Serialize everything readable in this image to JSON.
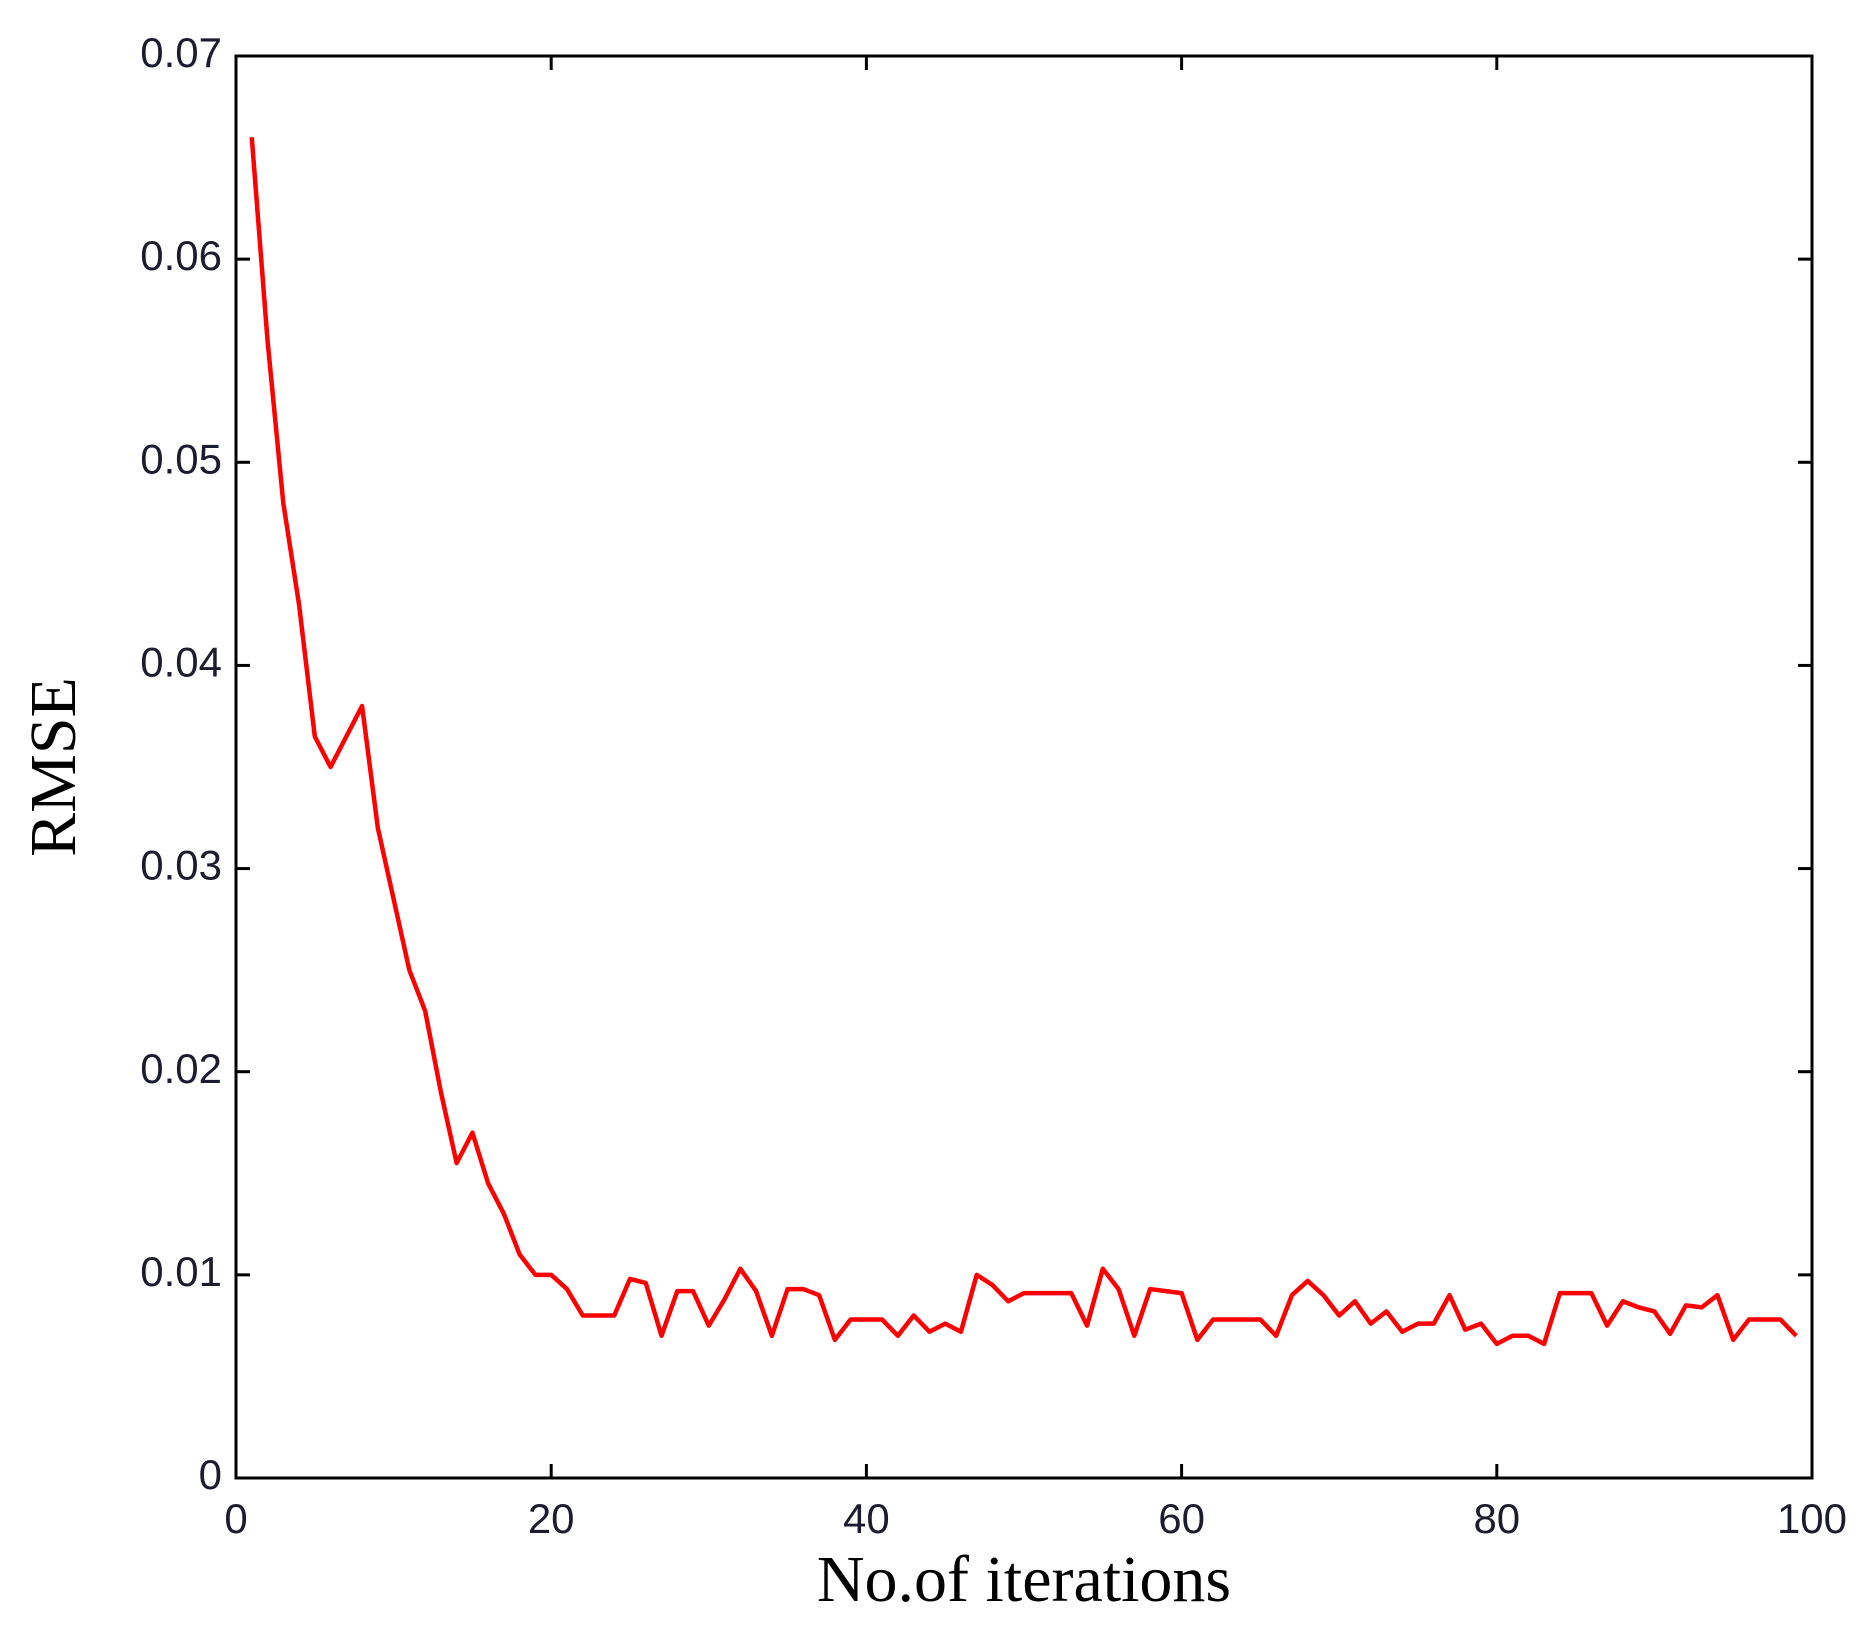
{
  "chart_data": {
    "type": "line",
    "xlabel": "No.of iterations",
    "ylabel": "RMSE",
    "x": [
      1,
      2,
      3,
      4,
      5,
      6,
      7,
      8,
      9,
      10,
      11,
      12,
      13,
      14,
      15,
      16,
      17,
      18,
      19,
      20,
      21,
      22,
      23,
      24,
      25,
      26,
      27,
      28,
      29,
      30,
      31,
      32,
      33,
      34,
      35,
      36,
      37,
      38,
      39,
      40,
      41,
      42,
      43,
      44,
      45,
      46,
      47,
      48,
      49,
      50,
      51,
      52,
      53,
      54,
      55,
      56,
      57,
      58,
      59,
      60,
      61,
      62,
      63,
      64,
      65,
      66,
      67,
      68,
      69,
      70,
      71,
      72,
      73,
      74,
      75,
      76,
      77,
      78,
      79,
      80,
      81,
      82,
      83,
      84,
      85,
      86,
      87,
      88,
      89,
      90,
      91,
      92,
      93,
      94,
      95,
      96,
      97,
      98,
      99
    ],
    "values": [
      0.066,
      0.056,
      0.048,
      0.043,
      0.0365,
      0.035,
      0.0365,
      0.038,
      0.032,
      0.0285,
      0.025,
      0.023,
      0.019,
      0.0155,
      0.017,
      0.0145,
      0.013,
      0.011,
      0.01,
      0.01,
      0.0093,
      0.008,
      0.008,
      0.008,
      0.0098,
      0.0096,
      0.007,
      0.0092,
      0.0092,
      0.0075,
      0.0088,
      0.0103,
      0.0092,
      0.007,
      0.0093,
      0.0093,
      0.009,
      0.0068,
      0.0078,
      0.0078,
      0.0078,
      0.007,
      0.008,
      0.0072,
      0.0076,
      0.0072,
      0.01,
      0.0095,
      0.0087,
      0.0091,
      0.0091,
      0.0091,
      0.0091,
      0.0075,
      0.0103,
      0.0093,
      0.007,
      0.0093,
      0.0092,
      0.0091,
      0.0068,
      0.0078,
      0.0078,
      0.0078,
      0.0078,
      0.007,
      0.009,
      0.0097,
      0.009,
      0.008,
      0.0087,
      0.0076,
      0.0082,
      0.0072,
      0.0076,
      0.0076,
      0.009,
      0.0073,
      0.0076,
      0.0066,
      0.007,
      0.007,
      0.0066,
      0.0091,
      0.0091,
      0.0091,
      0.0075,
      0.0087,
      0.0084,
      0.0082,
      0.0071,
      0.0085,
      0.0084,
      0.009,
      0.0068,
      0.0078,
      0.0078,
      0.0078,
      0.007
    ],
    "color": "#ff0000",
    "xlim": [
      0,
      100
    ],
    "xticks": [
      0,
      20,
      40,
      60,
      80,
      100
    ],
    "ylim": [
      0,
      0.07
    ],
    "yticks": [
      0,
      0.01,
      0.02,
      0.03,
      0.04,
      0.05,
      0.06,
      0.07
    ],
    "grid": false
  }
}
